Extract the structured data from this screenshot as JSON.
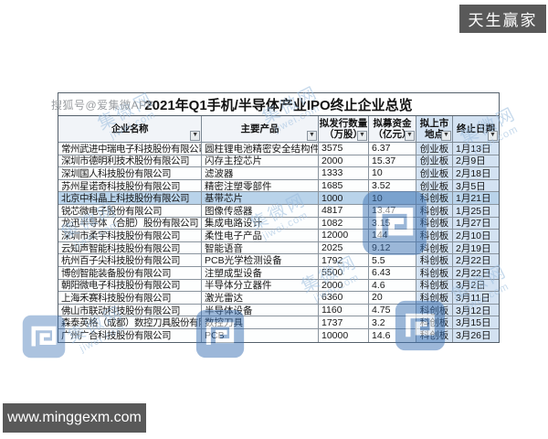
{
  "brand_badge": "天生赢家",
  "url_badge": "www.minggexm.com",
  "watermarks": {
    "sohu": "搜狐号@爱集微APP",
    "jiwei_line1": "集微网",
    "jiwei_line2": "jiwei.com"
  },
  "icons": {
    "filter_arrow": "▼"
  },
  "colors": {
    "badge_bg": "#595959",
    "watermark_blue": "#3c72b4",
    "watermark_text": "#9bbdde",
    "highlight_row": "#b9d3ea",
    "board_column_fill": "#d3e2f2"
  },
  "chart_data": {
    "type": "table",
    "title": "2021年Q1手机/半导体产业IPO终止企业总览",
    "columns": [
      {
        "line1": "企业名称",
        "line2": ""
      },
      {
        "line1": "主要产品",
        "line2": ""
      },
      {
        "line1": "拟发行数量",
        "line2": "（万股）"
      },
      {
        "line1": "拟募资金",
        "line2": "（亿元）"
      },
      {
        "line1": "拟上市",
        "line2": "地点"
      },
      {
        "line1": "终止日期",
        "line2": ""
      }
    ],
    "highlight_row_index": 4,
    "rows": [
      [
        "常州武进中瑞电子科技股份有限公司",
        "圆柱锂电池精密安全结构件",
        "3575",
        "6.37",
        "创业板",
        "1月13日"
      ],
      [
        "深圳市德明利技术股份有限公司",
        "闪存主控芯片",
        "2000",
        "15.37",
        "创业板",
        "2月9日"
      ],
      [
        "深圳国人科技股份有限公司",
        "滤波器",
        "1333",
        "10",
        "创业板",
        "2月18日"
      ],
      [
        "苏州星诺奇科技股份有限公司",
        "精密注塑零部件",
        "1685",
        "3.52",
        "创业板",
        "3月5日"
      ],
      [
        "北京中科晶上科技股份有限公司",
        "基带芯片",
        "1000",
        "10",
        "科创板",
        "1月21日"
      ],
      [
        "锐芯微电子股份有限公司",
        "图像传感器",
        "4817",
        "13.47",
        "科创板",
        "1月25日"
      ],
      [
        "龙迅半导体（合肥）股份有限公司",
        "集成电路设计",
        "1082",
        "3.15",
        "科创板",
        "1月27日"
      ],
      [
        "深圳市柔宇科技股份有限公司",
        "柔性电子产品",
        "12000",
        "144",
        "科创板",
        "2月10日"
      ],
      [
        "云知声智能科技股份有限公司",
        "智能语音",
        "2025",
        "9.12",
        "科创板",
        "2月19日"
      ],
      [
        "杭州百子尖科技股份有限公司",
        "PCB光学检测设备",
        "1792",
        "5.5",
        "科创板",
        "2月22日"
      ],
      [
        "博创智能装备股份有限公司",
        "注塑成型设备",
        "5500",
        "6.43",
        "科创板",
        "2月22日"
      ],
      [
        "朝阳微电子科技股份有限公司",
        "半导体分立器件",
        "2000",
        "4.6",
        "科创板",
        "3月2日"
      ],
      [
        "上海禾赛科技股份有限公司",
        "激光雷达",
        "6360",
        "20",
        "科创板",
        "3月11日"
      ],
      [
        "佛山市联动科技股份有限公司",
        "半导体设备",
        "1160",
        "4.75",
        "科创板",
        "3月12日"
      ],
      [
        "森泰英格（成都）数控刀具股份有限公司",
        "数控刀具",
        "1737",
        "3.2",
        "科创板",
        "3月15日"
      ],
      [
        "广州广合科技股份有限公司",
        "PCB",
        "10000",
        "14.6",
        "科创板",
        "3月26日"
      ]
    ]
  }
}
